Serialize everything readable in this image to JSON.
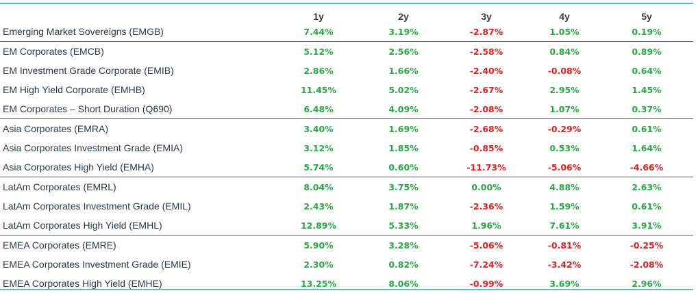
{
  "chart_data": {
    "type": "table",
    "columns": [
      "1y",
      "2y",
      "3y",
      "4y",
      "5y"
    ],
    "colors": {
      "positive": "#27a844",
      "negative": "#e02020",
      "rule": "#4fc3c3"
    },
    "rows": [
      {
        "name": "Emerging Market Sovereigns (EMGB)",
        "values": [
          "7.44%",
          "3.19%",
          "-2.87%",
          "1.05%",
          "0.19%"
        ],
        "group_start": false
      },
      {
        "name": "EM Corporates (EMCB)",
        "values": [
          "5.12%",
          "2.56%",
          "-2.58%",
          "0.84%",
          "0.89%"
        ],
        "group_start": true
      },
      {
        "name": "EM Investment Grade Corporate (EMIB)",
        "values": [
          "2.86%",
          "1.66%",
          "-2.40%",
          "-0.08%",
          "0.64%"
        ],
        "group_start": false
      },
      {
        "name": "EM High Yield Corporate (EMHB)",
        "values": [
          "11.45%",
          "5.02%",
          "-2.67%",
          "2.95%",
          "1.45%"
        ],
        "group_start": false
      },
      {
        "name": "EM Corporates – Short Duration (Q690)",
        "values": [
          "6.48%",
          "4.09%",
          "-2.08%",
          "1.07%",
          "0.37%"
        ],
        "group_start": false
      },
      {
        "name": "Asia Corporates (EMRA)",
        "values": [
          "3.40%",
          "1.69%",
          "-2.68%",
          "-0.29%",
          "0.61%"
        ],
        "group_start": true
      },
      {
        "name": "Asia Corporates Investment Grade (EMIA)",
        "values": [
          "3.12%",
          "1.85%",
          "-0.85%",
          "0.53%",
          "1.64%"
        ],
        "group_start": false
      },
      {
        "name": "Asia Corporates High Yield (EMHA)",
        "values": [
          "5.74%",
          "0.60%",
          "-11.73%",
          "-5.06%",
          "-4.66%"
        ],
        "group_start": false
      },
      {
        "name": "LatAm Corporates (EMRL)",
        "values": [
          "8.04%",
          "3.75%",
          "0.00%",
          "4.88%",
          "2.63%"
        ],
        "group_start": true
      },
      {
        "name": "LatAm Corporates Investment Grade (EMIL)",
        "values": [
          "2.43%",
          "1.87%",
          "-2.36%",
          "1.59%",
          "0.61%"
        ],
        "group_start": false
      },
      {
        "name": "LatAm Corporates High Yield (EMHL)",
        "values": [
          "12.89%",
          "5.33%",
          "1.96%",
          "7.61%",
          "3.91%"
        ],
        "group_start": false
      },
      {
        "name": "EMEA Corporates (EMRE)",
        "values": [
          "5.90%",
          "3.28%",
          "-5.06%",
          "-0.81%",
          "-0.25%"
        ],
        "group_start": true
      },
      {
        "name": "EMEA Corporates Investment Grade (EMIE)",
        "values": [
          "2.30%",
          "0.82%",
          "-7.24%",
          "-3.42%",
          "-2.08%"
        ],
        "group_start": false
      },
      {
        "name": "EMEA Corporates High Yield (EMHE)",
        "values": [
          "13.25%",
          "8.06%",
          "-0.99%",
          "3.69%",
          "2.96%"
        ],
        "group_start": false
      }
    ]
  }
}
